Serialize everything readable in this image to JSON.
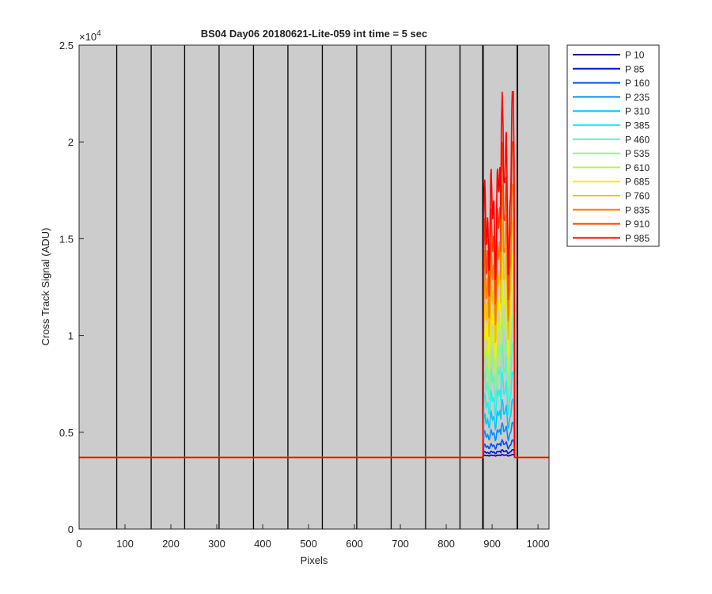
{
  "chart_data": {
    "type": "line",
    "title": "BS04 Day06 20180621-Lite-059 int time = 5 sec",
    "xlabel": "Pixels",
    "ylabel": "Cross Track Signal (ADU)",
    "y_exponent_label": "×10",
    "y_exponent_power": "4",
    "xlim": [
      0,
      1024
    ],
    "ylim": [
      0,
      25000
    ],
    "x_ticks": [
      0,
      100,
      200,
      300,
      400,
      500,
      600,
      700,
      800,
      900,
      1000
    ],
    "x_tick_labels": [
      "0",
      "100",
      "200",
      "300",
      "400",
      "500",
      "600",
      "700",
      "800",
      "900",
      "1000"
    ],
    "y_ticks": [
      0,
      5000,
      10000,
      15000,
      20000,
      25000
    ],
    "y_tick_labels": [
      "0",
      "0.5",
      "1",
      "1.5",
      "2",
      "2.5"
    ],
    "background": "#cccccc",
    "grid": false,
    "legend_position": "outside-top-right",
    "vertical_lines_x": [
      82,
      157,
      230,
      305,
      380,
      455,
      530,
      605,
      680,
      755,
      830,
      880,
      955
    ],
    "baseline_adu": 3700,
    "signal_region_x": [
      882,
      948
    ],
    "series": [
      {
        "name": "P 10",
        "color": "#0000a0",
        "peak": 3850
      },
      {
        "name": "P 85",
        "color": "#0010e0",
        "peak": 4100
      },
      {
        "name": "P 160",
        "color": "#0050ff",
        "peak": 4600
      },
      {
        "name": "P 235",
        "color": "#0090ff",
        "peak": 5500
      },
      {
        "name": "P 310",
        "color": "#00c8ff",
        "peak": 6700
      },
      {
        "name": "P 385",
        "color": "#20f0f0",
        "peak": 8100
      },
      {
        "name": "P 460",
        "color": "#60f0c0",
        "peak": 9600
      },
      {
        "name": "P 535",
        "color": "#90f090",
        "peak": 11000
      },
      {
        "name": "P 610",
        "color": "#c0f050",
        "peak": 12600
      },
      {
        "name": "P 685",
        "color": "#f0f000",
        "peak": 14200
      },
      {
        "name": "P 760",
        "color": "#f8c000",
        "peak": 15900
      },
      {
        "name": "P 835",
        "color": "#ff8000",
        "peak": 17800
      },
      {
        "name": "P 910",
        "color": "#ff4000",
        "peak": 20000
      },
      {
        "name": "P 985",
        "color": "#ff0000",
        "peak": 22600
      }
    ]
  }
}
